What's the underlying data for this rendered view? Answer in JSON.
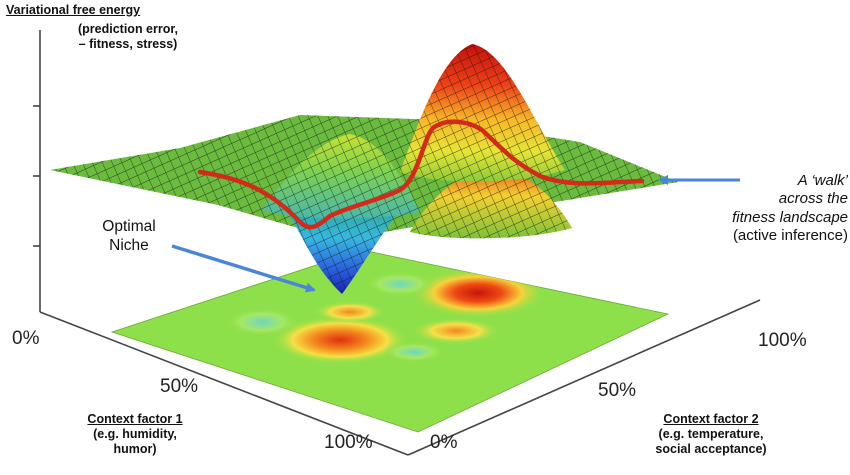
{
  "labels": {
    "z_title": "Variational free energy",
    "z_sub_1": "(prediction error,",
    "z_sub_2": "– fitness, stress)",
    "x_title": "Context factor 1",
    "x_sub_1": "(e.g. humidity,",
    "x_sub_2": "humor)",
    "y_title": "Context factor 2",
    "y_sub_1": "(e.g. temperature,",
    "y_sub_2": "social acceptance)"
  },
  "ticks": {
    "x_0": "0%",
    "x_50": "50%",
    "x_100": "100%",
    "y_0": "0%",
    "y_50": "50%",
    "y_100": "100%"
  },
  "annotations": {
    "niche_1": "Optimal",
    "niche_2": "Niche",
    "walk_1": "A ‘walk’",
    "walk_2": "across the",
    "walk_3": "fitness landscape",
    "walk_4": "(active inference)"
  },
  "colors": {
    "arrow": "#4a86d8",
    "walk_path": "#d42a1a",
    "mesh_line": "#1a1a1a",
    "plane": "#8ee04a"
  }
}
